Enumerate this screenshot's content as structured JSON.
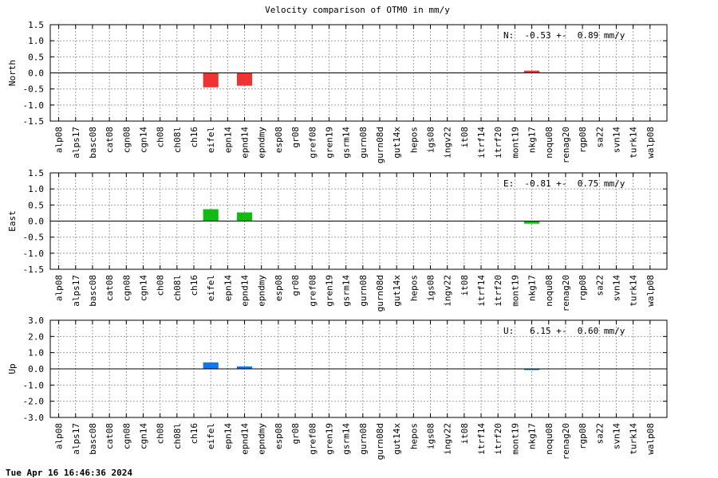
{
  "title": "Velocity comparison of OTM0 in mm/y",
  "footer": "Tue Apr 16 16:46:36 2024",
  "colors": {
    "north": "#ee3333",
    "east": "#11bb11",
    "up": "#1177ee"
  },
  "chart_data": [
    {
      "type": "bar",
      "ylabel": "North",
      "ylim": [
        -1.5,
        1.5
      ],
      "yticks": [
        "1.5",
        "1.0",
        "0.5",
        "0.0",
        "-0.5",
        "-1.0",
        "-1.5"
      ],
      "yticks_values": [
        1.5,
        1.0,
        0.5,
        0.0,
        -0.5,
        -1.0,
        -1.5
      ],
      "annotation": "N:  -0.53 +-  0.89 mm/y",
      "grid": true,
      "categories": [
        "alp08",
        "alps17",
        "basc08",
        "cat08",
        "cgn08",
        "cgn14",
        "ch08",
        "ch08l",
        "ch16",
        "eifel",
        "epn14",
        "epnd14",
        "epndmy",
        "esp08",
        "gr08",
        "gref08",
        "gren19",
        "gsrm14",
        "gurn08",
        "gurn08d",
        "gut14x",
        "hepos",
        "igs08",
        "ingv22",
        "it08",
        "itrf14",
        "itrf20",
        "mont19",
        "nkg17",
        "noqu08",
        "renag20",
        "rgp08",
        "sa22",
        "svn14",
        "turk14",
        "walp08"
      ],
      "values": [
        0,
        0,
        0,
        0,
        0,
        0,
        0,
        0,
        0,
        -0.45,
        0,
        -0.4,
        0,
        0,
        0,
        0,
        0,
        0,
        0,
        0,
        0,
        0,
        0,
        0,
        0,
        0,
        0,
        0,
        0.07,
        0,
        0,
        0,
        0,
        0,
        0,
        0
      ]
    },
    {
      "type": "bar",
      "ylabel": "East",
      "ylim": [
        -1.5,
        1.5
      ],
      "yticks": [
        "1.5",
        "1.0",
        "0.5",
        "0.0",
        "-0.5",
        "-1.0",
        "-1.5"
      ],
      "yticks_values": [
        1.5,
        1.0,
        0.5,
        0.0,
        -0.5,
        -1.0,
        -1.5
      ],
      "annotation": "E:  -0.81 +-  0.75 mm/y",
      "grid": true,
      "categories": [
        "alp08",
        "alps17",
        "basc08",
        "cat08",
        "cgn08",
        "cgn14",
        "ch08",
        "ch08l",
        "ch16",
        "eifel",
        "epn14",
        "epnd14",
        "epndmy",
        "esp08",
        "gr08",
        "gref08",
        "gren19",
        "gsrm14",
        "gurn08",
        "gurn08d",
        "gut14x",
        "hepos",
        "igs08",
        "ingv22",
        "it08",
        "itrf14",
        "itrf20",
        "mont19",
        "nkg17",
        "noqu08",
        "renag20",
        "rgp08",
        "sa22",
        "svn14",
        "turk14",
        "walp08"
      ],
      "values": [
        0,
        0,
        0,
        0,
        0,
        0,
        0,
        0,
        0,
        0.37,
        0,
        0.27,
        0,
        0,
        0,
        0,
        0,
        0,
        0,
        0,
        0,
        0,
        0,
        0,
        0,
        0,
        0,
        0,
        -0.08,
        0,
        0,
        0,
        0,
        0,
        0,
        0
      ]
    },
    {
      "type": "bar",
      "ylabel": "Up",
      "ylim": [
        -3.0,
        3.0
      ],
      "yticks": [
        "3.0",
        "2.0",
        "1.0",
        "0.0",
        "-1.0",
        "-2.0",
        "-3.0"
      ],
      "yticks_values": [
        3.0,
        2.0,
        1.0,
        0.0,
        -1.0,
        -2.0,
        -3.0
      ],
      "annotation": "U:   6.15 +-  0.60 mm/y",
      "grid": true,
      "categories": [
        "alp08",
        "alps17",
        "basc08",
        "cat08",
        "cgn08",
        "cgn14",
        "ch08",
        "ch08l",
        "ch16",
        "eifel",
        "epn14",
        "epnd14",
        "epndmy",
        "esp08",
        "gr08",
        "gref08",
        "gren19",
        "gsrm14",
        "gurn08",
        "gurn08d",
        "gut14x",
        "hepos",
        "igs08",
        "ingv22",
        "it08",
        "itrf14",
        "itrf20",
        "mont19",
        "nkg17",
        "noqu08",
        "renag20",
        "rgp08",
        "sa22",
        "svn14",
        "turk14",
        "walp08"
      ],
      "values": [
        0,
        0,
        0,
        0,
        0,
        0,
        0,
        0,
        0,
        0.4,
        0,
        0.15,
        0,
        0,
        0,
        0,
        0,
        0,
        0,
        0,
        0,
        0,
        0,
        0,
        0,
        0,
        0,
        0,
        -0.05,
        0,
        0,
        0,
        0,
        0,
        0,
        0
      ]
    }
  ]
}
